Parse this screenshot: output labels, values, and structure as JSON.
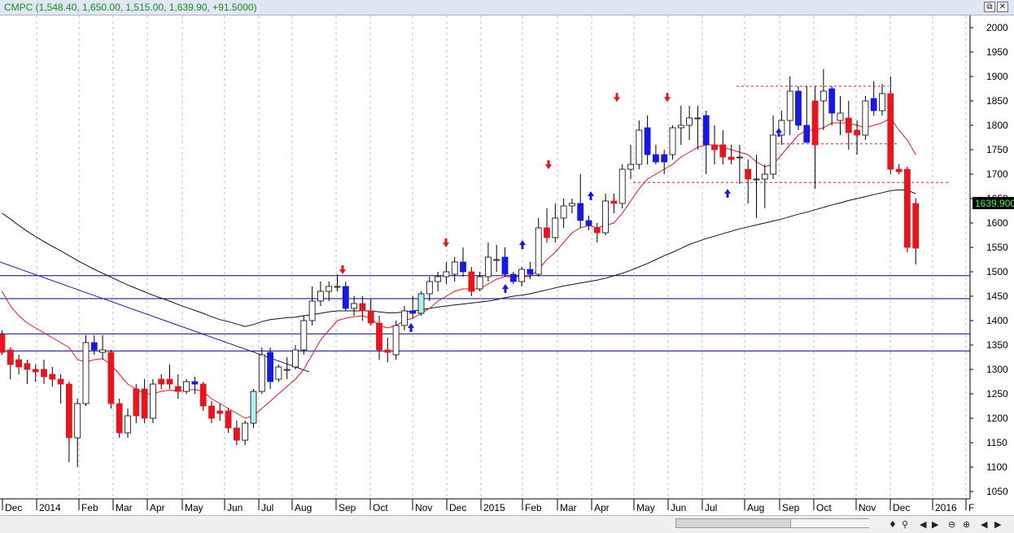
{
  "window": {
    "title": "CMPC (1,548.40, 1,650.00, 1,515.00, 1,639.90, +91.5000)",
    "buttons": {
      "restore": "⧉",
      "close": "✕"
    }
  },
  "chart_data": {
    "type": "candlestick",
    "title": "CMPC",
    "ylim": [
      1035,
      2025
    ],
    "y_ticks": [
      1050,
      1100,
      1150,
      1200,
      1250,
      1300,
      1350,
      1400,
      1450,
      1500,
      1550,
      1600,
      1650,
      1700,
      1750,
      1800,
      1850,
      1900,
      1950,
      2000
    ],
    "last_price_label": "1639.900",
    "x_labels": [
      "Dec",
      "2014",
      "Feb",
      "Mar",
      "Apr",
      "May",
      "Jun",
      "Jul",
      "Aug",
      "Sep",
      "Oct",
      "Nov",
      "Dec",
      "2015",
      "Feb",
      "Mar",
      "Apr",
      "May",
      "Jun",
      "Jul",
      "Aug",
      "Sep",
      "Oct",
      "Nov",
      "Dec",
      "2016",
      "F"
    ],
    "x_label_positions": [
      4,
      46,
      98,
      140,
      182,
      225,
      277,
      319,
      360,
      414,
      456,
      508,
      550,
      592,
      643,
      686,
      728,
      780,
      822,
      864,
      916,
      959,
      1001,
      1053,
      1095,
      1147,
      1188
    ],
    "candles": [
      {
        "o": 1372,
        "h": 1380,
        "l": 1330,
        "c": 1335,
        "color": "red"
      },
      {
        "o": 1340,
        "h": 1345,
        "l": 1280,
        "c": 1310,
        "color": "red"
      },
      {
        "o": 1320,
        "h": 1330,
        "l": 1290,
        "c": 1305,
        "color": "red"
      },
      {
        "o": 1312,
        "h": 1320,
        "l": 1270,
        "c": 1300,
        "color": "red"
      },
      {
        "o": 1300,
        "h": 1310,
        "l": 1275,
        "c": 1295,
        "color": "red"
      },
      {
        "o": 1300,
        "h": 1320,
        "l": 1270,
        "c": 1285,
        "color": "red"
      },
      {
        "o": 1290,
        "h": 1305,
        "l": 1265,
        "c": 1280,
        "color": "red"
      },
      {
        "o": 1280,
        "h": 1290,
        "l": 1230,
        "c": 1270,
        "color": "red"
      },
      {
        "o": 1270,
        "h": 1275,
        "l": 1110,
        "c": 1160,
        "color": "red"
      },
      {
        "o": 1160,
        "h": 1240,
        "l": 1100,
        "c": 1230,
        "color": "white"
      },
      {
        "o": 1230,
        "h": 1370,
        "l": 1225,
        "c": 1355,
        "color": "white"
      },
      {
        "o": 1355,
        "h": 1370,
        "l": 1330,
        "c": 1340,
        "color": "blue"
      },
      {
        "o": 1340,
        "h": 1370,
        "l": 1320,
        "c": 1335,
        "color": "white"
      },
      {
        "o": 1335,
        "h": 1340,
        "l": 1220,
        "c": 1230,
        "color": "red"
      },
      {
        "o": 1230,
        "h": 1240,
        "l": 1160,
        "c": 1170,
        "color": "red"
      },
      {
        "o": 1170,
        "h": 1220,
        "l": 1160,
        "c": 1205,
        "color": "white"
      },
      {
        "o": 1205,
        "h": 1270,
        "l": 1190,
        "c": 1260,
        "color": "red"
      },
      {
        "o": 1260,
        "h": 1280,
        "l": 1190,
        "c": 1200,
        "color": "red"
      },
      {
        "o": 1200,
        "h": 1280,
        "l": 1190,
        "c": 1270,
        "color": "white"
      },
      {
        "o": 1270,
        "h": 1290,
        "l": 1260,
        "c": 1280,
        "color": "red"
      },
      {
        "o": 1280,
        "h": 1310,
        "l": 1260,
        "c": 1270,
        "color": "red"
      },
      {
        "o": 1265,
        "h": 1290,
        "l": 1240,
        "c": 1255,
        "color": "red"
      },
      {
        "o": 1255,
        "h": 1280,
        "l": 1250,
        "c": 1275,
        "color": "white"
      },
      {
        "o": 1275,
        "h": 1285,
        "l": 1250,
        "c": 1270,
        "color": "blue"
      },
      {
        "o": 1270,
        "h": 1275,
        "l": 1215,
        "c": 1225,
        "color": "red"
      },
      {
        "o": 1225,
        "h": 1235,
        "l": 1190,
        "c": 1200,
        "color": "red"
      },
      {
        "o": 1210,
        "h": 1230,
        "l": 1195,
        "c": 1215,
        "color": "red"
      },
      {
        "o": 1215,
        "h": 1220,
        "l": 1170,
        "c": 1180,
        "color": "red"
      },
      {
        "o": 1180,
        "h": 1195,
        "l": 1145,
        "c": 1155,
        "color": "red"
      },
      {
        "o": 1155,
        "h": 1195,
        "l": 1145,
        "c": 1190,
        "color": "white"
      },
      {
        "o": 1190,
        "h": 1260,
        "l": 1180,
        "c": 1255,
        "color": "cyan"
      },
      {
        "o": 1255,
        "h": 1345,
        "l": 1250,
        "c": 1330,
        "color": "white"
      },
      {
        "o": 1335,
        "h": 1345,
        "l": 1260,
        "c": 1275,
        "color": "blue"
      },
      {
        "o": 1280,
        "h": 1310,
        "l": 1275,
        "c": 1305,
        "color": "white"
      },
      {
        "o": 1300,
        "h": 1325,
        "l": 1280,
        "c": 1300,
        "color": "white"
      },
      {
        "o": 1305,
        "h": 1350,
        "l": 1300,
        "c": 1340,
        "color": "white"
      },
      {
        "o": 1340,
        "h": 1410,
        "l": 1330,
        "c": 1400,
        "color": "white"
      },
      {
        "o": 1400,
        "h": 1470,
        "l": 1390,
        "c": 1440,
        "color": "white"
      },
      {
        "o": 1440,
        "h": 1480,
        "l": 1430,
        "c": 1460,
        "color": "white"
      },
      {
        "o": 1460,
        "h": 1480,
        "l": 1440,
        "c": 1470,
        "color": "white"
      },
      {
        "o": 1470,
        "h": 1495,
        "l": 1460,
        "c": 1470,
        "color": "white"
      },
      {
        "o": 1470,
        "h": 1480,
        "l": 1420,
        "c": 1425,
        "color": "blue"
      },
      {
        "o": 1425,
        "h": 1450,
        "l": 1410,
        "c": 1435,
        "color": "white"
      },
      {
        "o": 1435,
        "h": 1450,
        "l": 1400,
        "c": 1420,
        "color": "red"
      },
      {
        "o": 1420,
        "h": 1445,
        "l": 1390,
        "c": 1395,
        "color": "red"
      },
      {
        "o": 1395,
        "h": 1410,
        "l": 1320,
        "c": 1340,
        "color": "red"
      },
      {
        "o": 1340,
        "h": 1365,
        "l": 1315,
        "c": 1335,
        "color": "red"
      },
      {
        "o": 1330,
        "h": 1400,
        "l": 1320,
        "c": 1390,
        "color": "white"
      },
      {
        "o": 1390,
        "h": 1430,
        "l": 1380,
        "c": 1420,
        "color": "white"
      },
      {
        "o": 1420,
        "h": 1450,
        "l": 1405,
        "c": 1415,
        "color": "blue"
      },
      {
        "o": 1415,
        "h": 1460,
        "l": 1410,
        "c": 1455,
        "color": "cyan"
      },
      {
        "o": 1455,
        "h": 1490,
        "l": 1440,
        "c": 1480,
        "color": "white"
      },
      {
        "o": 1480,
        "h": 1500,
        "l": 1460,
        "c": 1490,
        "color": "white"
      },
      {
        "o": 1490,
        "h": 1520,
        "l": 1475,
        "c": 1500,
        "color": "white"
      },
      {
        "o": 1495,
        "h": 1530,
        "l": 1480,
        "c": 1520,
        "color": "white"
      },
      {
        "o": 1520,
        "h": 1550,
        "l": 1490,
        "c": 1500,
        "color": "blue"
      },
      {
        "o": 1500,
        "h": 1510,
        "l": 1450,
        "c": 1460,
        "color": "red"
      },
      {
        "o": 1465,
        "h": 1500,
        "l": 1460,
        "c": 1490,
        "color": "white"
      },
      {
        "o": 1490,
        "h": 1560,
        "l": 1480,
        "c": 1530,
        "color": "white"
      },
      {
        "o": 1525,
        "h": 1555,
        "l": 1500,
        "c": 1525,
        "color": "white"
      },
      {
        "o": 1530,
        "h": 1550,
        "l": 1490,
        "c": 1495,
        "color": "blue"
      },
      {
        "o": 1495,
        "h": 1500,
        "l": 1475,
        "c": 1480,
        "color": "blue"
      },
      {
        "o": 1480,
        "h": 1510,
        "l": 1470,
        "c": 1505,
        "color": "white"
      },
      {
        "o": 1505,
        "h": 1520,
        "l": 1485,
        "c": 1495,
        "color": "blue"
      },
      {
        "o": 1495,
        "h": 1610,
        "l": 1490,
        "c": 1590,
        "color": "white"
      },
      {
        "o": 1590,
        "h": 1630,
        "l": 1560,
        "c": 1570,
        "color": "red"
      },
      {
        "o": 1570,
        "h": 1640,
        "l": 1560,
        "c": 1610,
        "color": "white"
      },
      {
        "o": 1610,
        "h": 1650,
        "l": 1590,
        "c": 1635,
        "color": "white"
      },
      {
        "o": 1635,
        "h": 1650,
        "l": 1620,
        "c": 1640,
        "color": "white"
      },
      {
        "o": 1640,
        "h": 1700,
        "l": 1590,
        "c": 1605,
        "color": "blue"
      },
      {
        "o": 1605,
        "h": 1615,
        "l": 1585,
        "c": 1595,
        "color": "blue"
      },
      {
        "o": 1590,
        "h": 1600,
        "l": 1560,
        "c": 1580,
        "color": "red"
      },
      {
        "o": 1580,
        "h": 1660,
        "l": 1575,
        "c": 1645,
        "color": "white"
      },
      {
        "o": 1645,
        "h": 1660,
        "l": 1620,
        "c": 1640,
        "color": "red"
      },
      {
        "o": 1640,
        "h": 1720,
        "l": 1630,
        "c": 1710,
        "color": "white"
      },
      {
        "o": 1710,
        "h": 1760,
        "l": 1690,
        "c": 1720,
        "color": "white"
      },
      {
        "o": 1720,
        "h": 1810,
        "l": 1710,
        "c": 1790,
        "color": "white"
      },
      {
        "o": 1795,
        "h": 1820,
        "l": 1720,
        "c": 1740,
        "color": "blue"
      },
      {
        "o": 1740,
        "h": 1760,
        "l": 1720,
        "c": 1725,
        "color": "blue"
      },
      {
        "o": 1725,
        "h": 1750,
        "l": 1700,
        "c": 1740,
        "color": "blue"
      },
      {
        "o": 1740,
        "h": 1800,
        "l": 1730,
        "c": 1795,
        "color": "white"
      },
      {
        "o": 1795,
        "h": 1840,
        "l": 1760,
        "c": 1800,
        "color": "white"
      },
      {
        "o": 1800,
        "h": 1840,
        "l": 1770,
        "c": 1815,
        "color": "white"
      },
      {
        "o": 1815,
        "h": 1840,
        "l": 1750,
        "c": 1815,
        "color": "white"
      },
      {
        "o": 1820,
        "h": 1830,
        "l": 1700,
        "c": 1760,
        "color": "blue"
      },
      {
        "o": 1760,
        "h": 1800,
        "l": 1720,
        "c": 1750,
        "color": "red"
      },
      {
        "o": 1760,
        "h": 1790,
        "l": 1720,
        "c": 1735,
        "color": "red"
      },
      {
        "o": 1735,
        "h": 1760,
        "l": 1720,
        "c": 1730,
        "color": "red"
      },
      {
        "o": 1735,
        "h": 1760,
        "l": 1680,
        "c": 1735,
        "color": "white"
      },
      {
        "o": 1710,
        "h": 1730,
        "l": 1640,
        "c": 1690,
        "color": "red"
      },
      {
        "o": 1690,
        "h": 1740,
        "l": 1610,
        "c": 1690,
        "color": "white"
      },
      {
        "o": 1690,
        "h": 1720,
        "l": 1630,
        "c": 1700,
        "color": "white"
      },
      {
        "o": 1700,
        "h": 1820,
        "l": 1690,
        "c": 1780,
        "color": "white"
      },
      {
        "o": 1780,
        "h": 1830,
        "l": 1760,
        "c": 1810,
        "color": "white"
      },
      {
        "o": 1810,
        "h": 1900,
        "l": 1780,
        "c": 1870,
        "color": "white"
      },
      {
        "o": 1870,
        "h": 1880,
        "l": 1790,
        "c": 1800,
        "color": "blue"
      },
      {
        "o": 1800,
        "h": 1880,
        "l": 1770,
        "c": 1765,
        "color": "blue"
      },
      {
        "o": 1760,
        "h": 1880,
        "l": 1670,
        "c": 1850,
        "color": "red"
      },
      {
        "o": 1850,
        "h": 1915,
        "l": 1790,
        "c": 1870,
        "color": "white"
      },
      {
        "o": 1875,
        "h": 1880,
        "l": 1800,
        "c": 1825,
        "color": "blue"
      },
      {
        "o": 1825,
        "h": 1860,
        "l": 1780,
        "c": 1810,
        "color": "white"
      },
      {
        "o": 1815,
        "h": 1850,
        "l": 1750,
        "c": 1785,
        "color": "red"
      },
      {
        "o": 1790,
        "h": 1810,
        "l": 1740,
        "c": 1780,
        "color": "red"
      },
      {
        "o": 1780,
        "h": 1860,
        "l": 1770,
        "c": 1850,
        "color": "white"
      },
      {
        "o": 1855,
        "h": 1890,
        "l": 1820,
        "c": 1830,
        "color": "blue"
      },
      {
        "o": 1830,
        "h": 1885,
        "l": 1820,
        "c": 1865,
        "color": "white"
      },
      {
        "o": 1865,
        "h": 1900,
        "l": 1700,
        "c": 1710,
        "color": "red"
      },
      {
        "o": 1710,
        "h": 1720,
        "l": 1700,
        "c": 1705,
        "color": "red"
      },
      {
        "o": 1710,
        "h": 1715,
        "l": 1540,
        "c": 1550,
        "color": "red"
      },
      {
        "o": 1548.4,
        "h": 1650,
        "l": 1515,
        "c": 1639.9,
        "color": "red"
      }
    ],
    "ema_red": [
      1460,
      1430,
      1410,
      1395,
      1385,
      1375,
      1365,
      1355,
      1345,
      1320,
      1315,
      1320,
      1322,
      1310,
      1290,
      1270,
      1260,
      1250,
      1250,
      1255,
      1258,
      1255,
      1258,
      1259,
      1255,
      1240,
      1230,
      1220,
      1210,
      1200,
      1205,
      1220,
      1235,
      1250,
      1265,
      1280,
      1300,
      1330,
      1360,
      1380,
      1400,
      1405,
      1408,
      1410,
      1405,
      1390,
      1385,
      1390,
      1400,
      1405,
      1415,
      1425,
      1440,
      1450,
      1460,
      1465,
      1465,
      1465,
      1475,
      1485,
      1490,
      1490,
      1490,
      1490,
      1505,
      1525,
      1540,
      1560,
      1580,
      1590,
      1595,
      1590,
      1595,
      1600,
      1620,
      1645,
      1670,
      1690,
      1700,
      1710,
      1720,
      1735,
      1745,
      1755,
      1760,
      1760,
      1755,
      1750,
      1745,
      1740,
      1725,
      1715,
      1720,
      1740,
      1760,
      1780,
      1790,
      1790,
      1795,
      1805,
      1805,
      1805,
      1800,
      1795,
      1800,
      1805,
      1815,
      1790,
      1770,
      1740
    ],
    "ma_black": [
      1620,
      1608,
      1595,
      1583,
      1572,
      1562,
      1552,
      1543,
      1533,
      1523,
      1514,
      1505,
      1497,
      1489,
      1481,
      1473,
      1466,
      1459,
      1452,
      1446,
      1440,
      1433,
      1427,
      1421,
      1415,
      1408,
      1402,
      1398,
      1393,
      1388,
      1392,
      1398,
      1402,
      1404,
      1406,
      1407,
      1410,
      1412,
      1415,
      1418,
      1420,
      1420,
      1420,
      1420,
      1420,
      1418,
      1416,
      1416,
      1418,
      1420,
      1422,
      1425,
      1428,
      1430,
      1432,
      1434,
      1436,
      1438,
      1440,
      1443,
      1447,
      1450,
      1452,
      1455,
      1459,
      1463,
      1467,
      1471,
      1474,
      1477,
      1480,
      1483,
      1487,
      1492,
      1497,
      1503,
      1510,
      1517,
      1525,
      1533,
      1540,
      1548,
      1556,
      1562,
      1568,
      1573,
      1578,
      1583,
      1588,
      1592,
      1596,
      1600,
      1604,
      1608,
      1613,
      1618,
      1622,
      1627,
      1632,
      1637,
      1641,
      1646,
      1650,
      1654,
      1658,
      1662,
      1666,
      1668,
      1667,
      1660
    ],
    "horizontal_lines": [
      1492,
      1445,
      1373,
      1338
    ],
    "resistance_lines": [
      {
        "y": 1880,
        "x1": 905,
        "x2": 1092
      },
      {
        "y": 1762,
        "x1": 955,
        "x2": 1105
      },
      {
        "y": 1683,
        "x1": 778,
        "x2": 1168
      }
    ],
    "trendline": {
      "x1": 0,
      "y1": 1520,
      "x2": 380,
      "y2": 1295
    },
    "down_arrows": [
      {
        "x": 421,
        "y": 1495
      },
      {
        "x": 548,
        "y": 1550
      },
      {
        "x": 674,
        "y": 1710
      },
      {
        "x": 758,
        "y": 1848
      },
      {
        "x": 820,
        "y": 1848
      }
    ],
    "up_arrows": [
      {
        "x": 505,
        "y": 1395
      },
      {
        "x": 621,
        "y": 1475
      },
      {
        "x": 642,
        "y": 1565
      },
      {
        "x": 726,
        "y": 1665
      },
      {
        "x": 894,
        "y": 1670
      },
      {
        "x": 957,
        "y": 1795
      }
    ],
    "colors": {
      "red": "#e8141e",
      "blue": "#1818e6",
      "white": "#ffffff",
      "cyan": "#aef0f0",
      "ema": "#e8141e",
      "ma": "#111111",
      "hline": "#00008b",
      "grid": "#bdbdbd",
      "resist": "#d42020"
    }
  },
  "nav": {
    "zoom_out": "⊖",
    "zoom_in": "⊕",
    "prev": "◀",
    "next": "▶",
    "go_end": "▶|",
    "sync": "♦",
    "pin": "⚲"
  }
}
